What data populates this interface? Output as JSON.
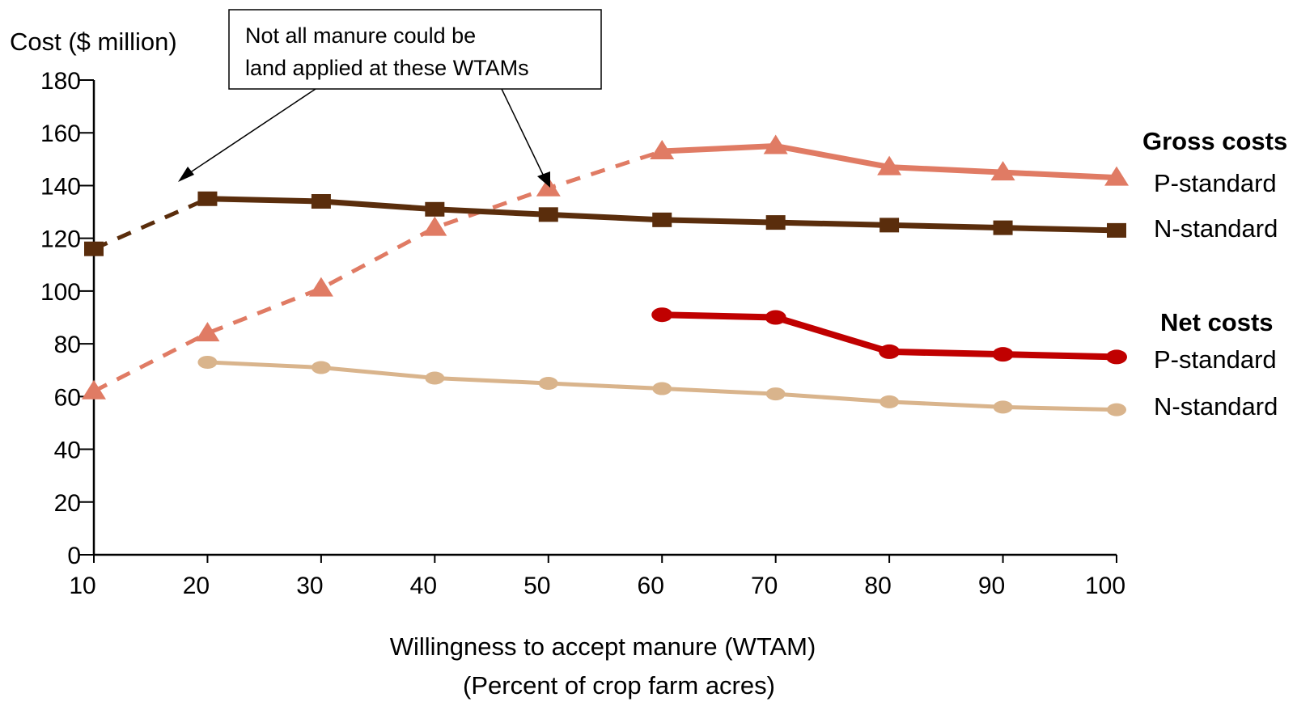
{
  "chart_data": {
    "type": "line",
    "title": "",
    "ylabel": "Cost ($ million)",
    "xlabel": "Willingness to accept manure (WTAM)",
    "xlabel_sub": "(Percent of crop farm acres)",
    "x_ticks": [
      10,
      20,
      30,
      40,
      50,
      60,
      70,
      80,
      90,
      100
    ],
    "y_ticks": [
      0,
      20,
      40,
      60,
      80,
      100,
      120,
      140,
      160,
      180
    ],
    "xlim": [
      10,
      100
    ],
    "ylim": [
      0,
      180
    ],
    "grid": false,
    "legend": {
      "placement": "right",
      "groups": [
        {
          "heading": "Gross costs",
          "items": [
            "P-standard",
            "N-standard"
          ]
        },
        {
          "heading": "Net costs",
          "items": [
            "P-standard",
            "N-standard"
          ]
        }
      ]
    },
    "annotation": {
      "lines": [
        "Not all manure could be",
        "land applied at these WTAMs"
      ],
      "points_to_x": [
        17,
        50
      ]
    },
    "series": [
      {
        "group": "Gross costs",
        "legend_label": "P-standard",
        "marker": "triangle",
        "color": "#e07b64",
        "x": [
          10,
          20,
          30,
          40,
          50,
          60,
          70,
          80,
          90,
          100
        ],
        "y": [
          62,
          84,
          101,
          124,
          139,
          153,
          155,
          147,
          145,
          143
        ],
        "dashed_through_x": 60
      },
      {
        "group": "Gross costs",
        "legend_label": "N-standard",
        "marker": "square",
        "color": "#5a2d0c",
        "x": [
          10,
          20,
          30,
          40,
          50,
          60,
          70,
          80,
          90,
          100
        ],
        "y": [
          116,
          135,
          134,
          131,
          129,
          127,
          126,
          125,
          124,
          123
        ],
        "dashed_through_x": 20
      },
      {
        "group": "Net costs",
        "legend_label": "P-standard",
        "marker": "circle",
        "color": "#c00000",
        "x": [
          60,
          70,
          80,
          90,
          100
        ],
        "y": [
          91,
          90,
          77,
          76,
          75
        ],
        "dashed_through_x": null
      },
      {
        "group": "Net costs",
        "legend_label": "N-standard",
        "marker": "circle",
        "color": "#d9b48c",
        "x": [
          20,
          30,
          40,
          50,
          60,
          70,
          80,
          90,
          100
        ],
        "y": [
          73,
          71,
          67,
          65,
          63,
          61,
          58,
          56,
          55
        ],
        "dashed_through_x": null
      }
    ]
  }
}
